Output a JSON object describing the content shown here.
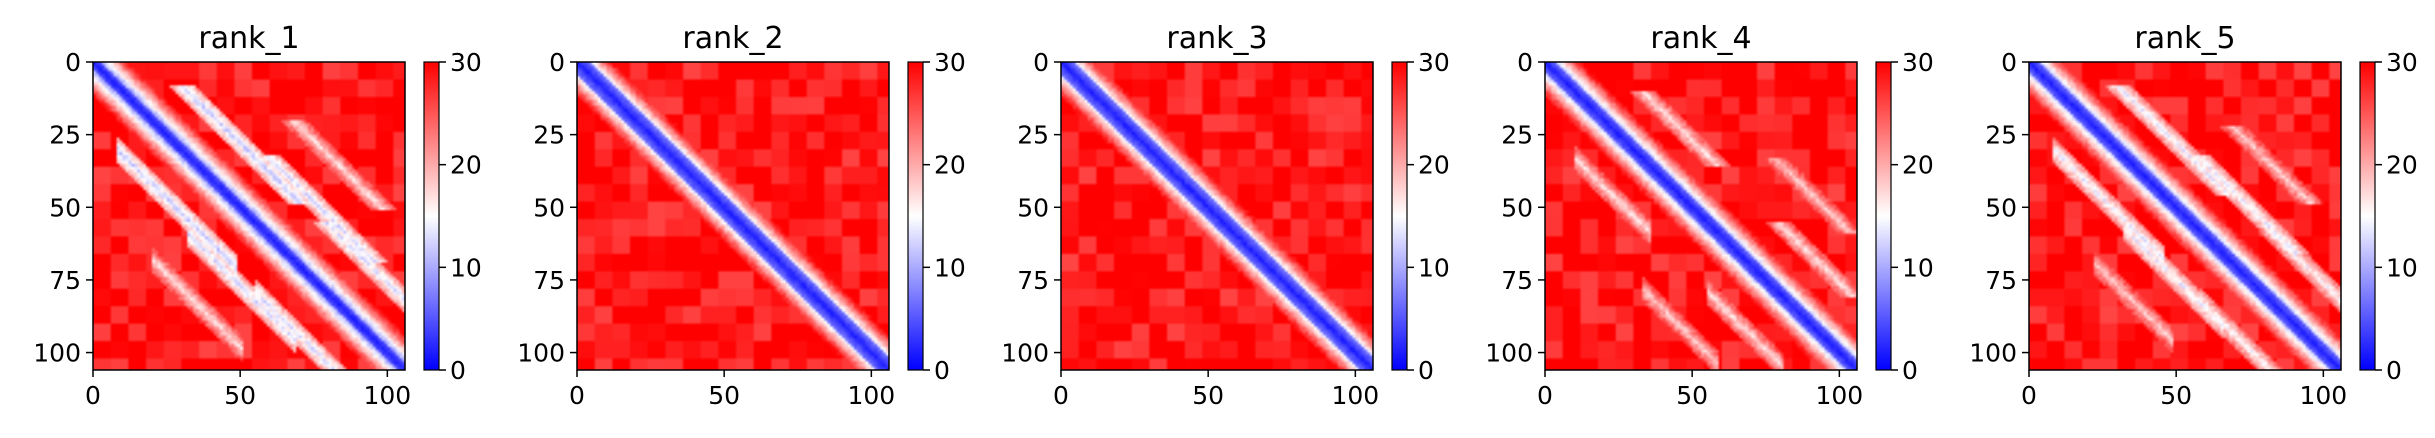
{
  "chart_data": [
    {
      "type": "heatmap",
      "title": "rank_1",
      "n": 106,
      "xlim": [
        0,
        106
      ],
      "ylim": [
        106,
        0
      ],
      "xticks": [
        0,
        50,
        100
      ],
      "yticks": [
        0,
        25,
        50,
        75,
        100
      ],
      "colorbar": {
        "min": 0,
        "max": 30,
        "ticks": [
          0,
          10,
          20,
          30
        ],
        "colors": [
          "#0000ff",
          "#ffffff",
          "#ff0000"
        ]
      },
      "diagonal_band_width": 3,
      "contact_bands": [
        {
          "offset": 22,
          "from": 8,
          "to": 48,
          "value": 12
        },
        {
          "offset": -22,
          "from": 8,
          "to": 48,
          "value": 12
        },
        {
          "offset": 27,
          "from": 32,
          "to": 68,
          "value": 13
        },
        {
          "offset": -27,
          "from": 32,
          "to": 68,
          "value": 13
        },
        {
          "offset": 24,
          "from": 55,
          "to": 100,
          "value": 13
        },
        {
          "offset": -24,
          "from": 55,
          "to": 100,
          "value": 13
        },
        {
          "offset": 48,
          "from": 20,
          "to": 50,
          "value": 17
        },
        {
          "offset": -48,
          "from": 20,
          "to": 50,
          "value": 17
        }
      ]
    },
    {
      "type": "heatmap",
      "title": "rank_2",
      "n": 106,
      "xlim": [
        0,
        106
      ],
      "ylim": [
        106,
        0
      ],
      "xticks": [
        0,
        50,
        100
      ],
      "yticks": [
        0,
        25,
        50,
        75,
        100
      ],
      "colorbar": {
        "min": 0,
        "max": 30,
        "ticks": [
          0,
          10,
          20,
          30
        ],
        "colors": [
          "#0000ff",
          "#ffffff",
          "#ff0000"
        ]
      },
      "diagonal_band_width": 5,
      "contact_bands": []
    },
    {
      "type": "heatmap",
      "title": "rank_3",
      "n": 106,
      "xlim": [
        0,
        106
      ],
      "ylim": [
        106,
        0
      ],
      "xticks": [
        0,
        50,
        100
      ],
      "yticks": [
        0,
        25,
        50,
        75,
        100
      ],
      "colorbar": {
        "min": 0,
        "max": 30,
        "ticks": [
          0,
          10,
          20,
          30
        ],
        "colors": [
          "#0000ff",
          "#ffffff",
          "#ff0000"
        ]
      },
      "diagonal_band_width": 5,
      "contact_bands": []
    },
    {
      "type": "heatmap",
      "title": "rank_4",
      "n": 106,
      "xlim": [
        0,
        106
      ],
      "ylim": [
        106,
        0
      ],
      "xticks": [
        0,
        50,
        100
      ],
      "yticks": [
        0,
        25,
        50,
        75,
        100
      ],
      "colorbar": {
        "min": 0,
        "max": 30,
        "ticks": [
          0,
          10,
          20,
          30
        ],
        "colors": [
          "#0000ff",
          "#ffffff",
          "#ff0000"
        ]
      },
      "diagonal_band_width": 4,
      "contact_bands": [
        {
          "offset": 23,
          "from": 10,
          "to": 35,
          "value": 17
        },
        {
          "offset": -23,
          "from": 10,
          "to": 35,
          "value": 17
        },
        {
          "offset": 24,
          "from": 55,
          "to": 80,
          "value": 17
        },
        {
          "offset": -24,
          "from": 55,
          "to": 80,
          "value": 17
        },
        {
          "offset": 45,
          "from": 33,
          "to": 58,
          "value": 18
        },
        {
          "offset": -45,
          "from": 33,
          "to": 58,
          "value": 18
        }
      ]
    },
    {
      "type": "heatmap",
      "title": "rank_5",
      "n": 106,
      "xlim": [
        0,
        106
      ],
      "ylim": [
        106,
        0
      ],
      "xticks": [
        0,
        50,
        100
      ],
      "yticks": [
        0,
        25,
        50,
        75,
        100
      ],
      "colorbar": {
        "min": 0,
        "max": 30,
        "ticks": [
          0,
          10,
          20,
          30
        ],
        "colors": [
          "#0000ff",
          "#ffffff",
          "#ff0000"
        ]
      },
      "diagonal_band_width": 4,
      "contact_bands": [
        {
          "offset": 22,
          "from": 8,
          "to": 45,
          "value": 14
        },
        {
          "offset": -22,
          "from": 8,
          "to": 45,
          "value": 14
        },
        {
          "offset": 25,
          "from": 32,
          "to": 65,
          "value": 14
        },
        {
          "offset": -25,
          "from": 32,
          "to": 65,
          "value": 14
        },
        {
          "offset": 24,
          "from": 58,
          "to": 100,
          "value": 15
        },
        {
          "offset": -24,
          "from": 58,
          "to": 100,
          "value": 15
        },
        {
          "offset": 47,
          "from": 22,
          "to": 48,
          "value": 18
        },
        {
          "offset": -47,
          "from": 22,
          "to": 48,
          "value": 18
        }
      ]
    }
  ]
}
